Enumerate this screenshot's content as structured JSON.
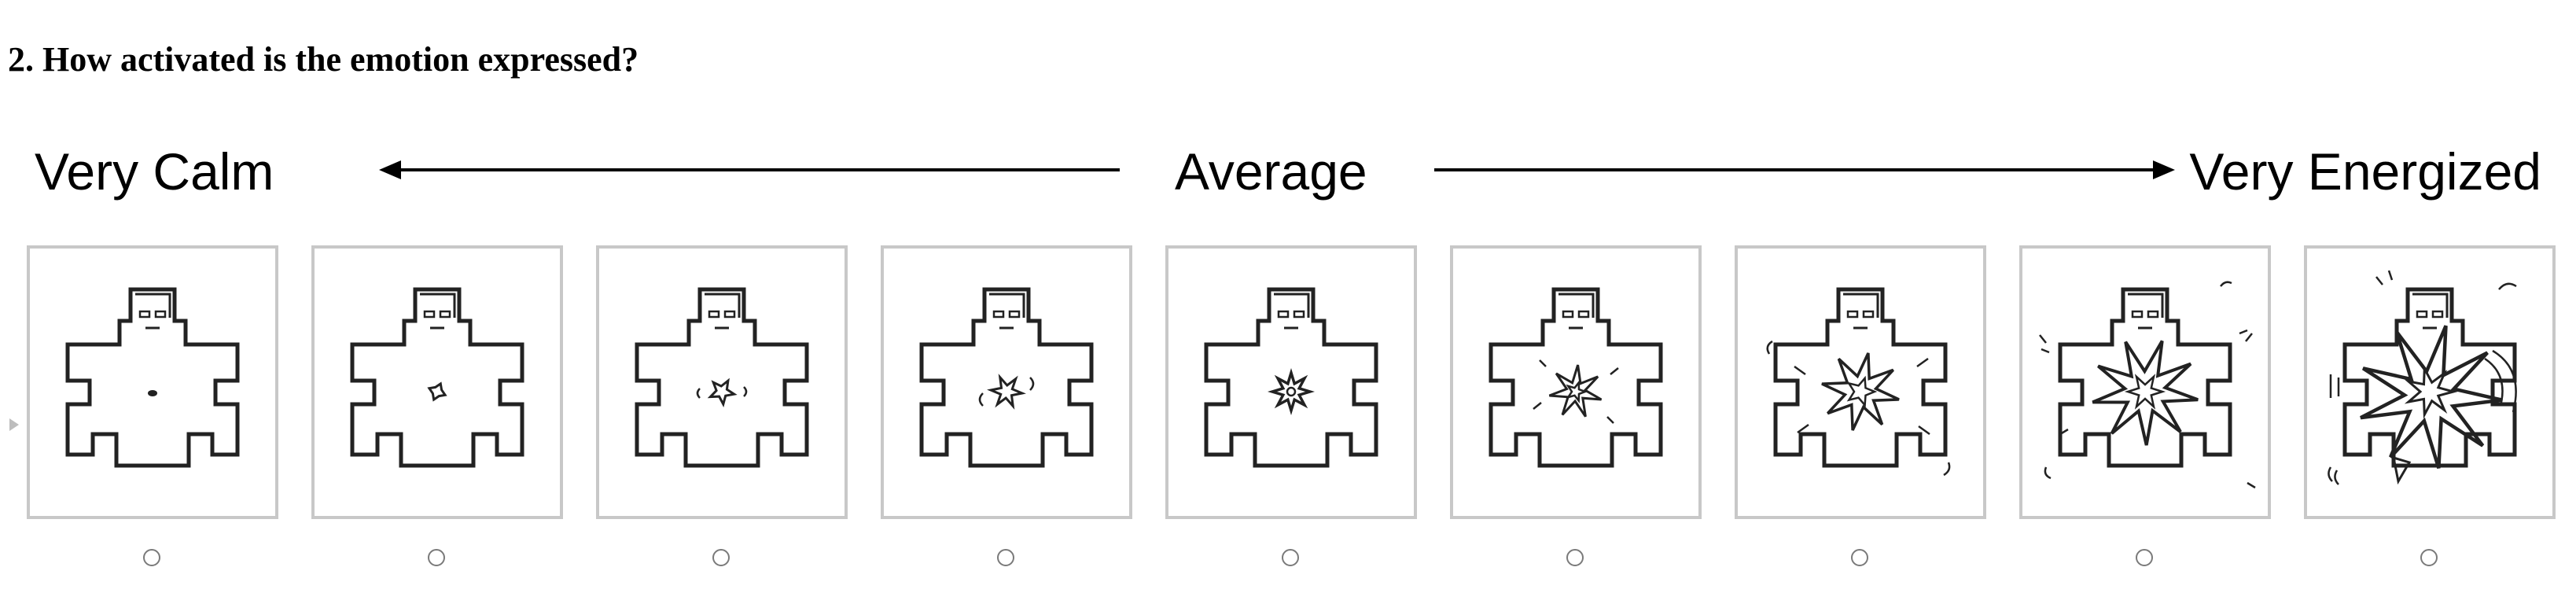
{
  "question": {
    "text": "2. How activated is the emotion expressed?"
  },
  "scale": {
    "left_label": "Very Calm",
    "middle_label": "Average",
    "right_label": "Very Energized"
  },
  "options": [
    {
      "level": 1,
      "icon": "sam-arousal-figure-icon",
      "selected": false
    },
    {
      "level": 2,
      "icon": "sam-arousal-figure-icon",
      "selected": false
    },
    {
      "level": 3,
      "icon": "sam-arousal-figure-icon",
      "selected": false
    },
    {
      "level": 4,
      "icon": "sam-arousal-figure-icon",
      "selected": false
    },
    {
      "level": 5,
      "icon": "sam-arousal-figure-icon",
      "selected": false
    },
    {
      "level": 6,
      "icon": "sam-arousal-figure-icon",
      "selected": false
    },
    {
      "level": 7,
      "icon": "sam-arousal-figure-icon",
      "selected": false
    },
    {
      "level": 8,
      "icon": "sam-arousal-figure-icon",
      "selected": false
    },
    {
      "level": 9,
      "icon": "sam-arousal-figure-icon",
      "selected": false
    }
  ],
  "colors": {
    "text": "#000000",
    "panel_border": "#c8c8c8",
    "radio_border": "#7a7a7a"
  }
}
